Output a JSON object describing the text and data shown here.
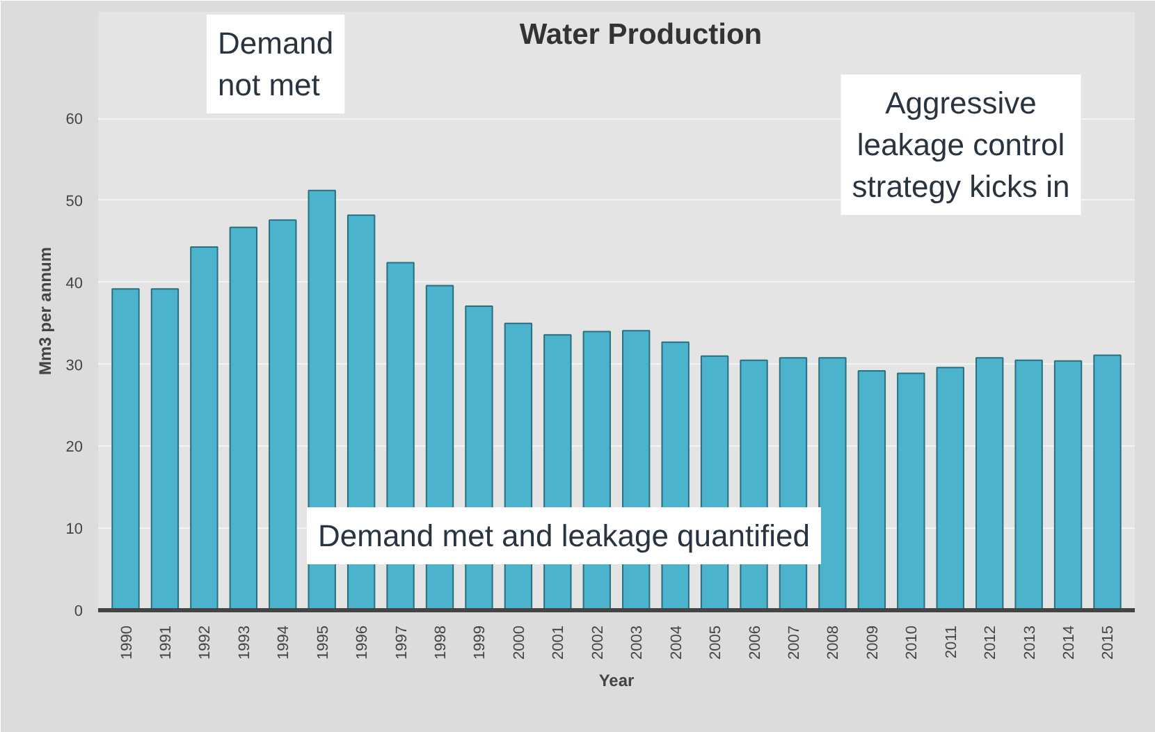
{
  "chart_data": {
    "type": "bar",
    "title": "Water Production",
    "xlabel": "Year",
    "ylabel": "Mm3 per annum",
    "categories": [
      "1990",
      "1991",
      "1992",
      "1993",
      "1994",
      "1995",
      "1996",
      "1997",
      "1998",
      "1999",
      "2000",
      "2001",
      "2002",
      "2003",
      "2004",
      "2005",
      "2006",
      "2007",
      "2008",
      "2009",
      "2010",
      "2011",
      "2012",
      "2013",
      "2014",
      "2015"
    ],
    "values": [
      39.2,
      39.2,
      44.3,
      46.7,
      47.6,
      51.2,
      48.2,
      42.4,
      39.6,
      37.1,
      35.0,
      33.6,
      34.0,
      34.1,
      32.7,
      31.0,
      30.5,
      30.8,
      30.8,
      29.2,
      28.9,
      29.6,
      30.8,
      30.5,
      30.4,
      31.1
    ],
    "color": "#4bb3cc",
    "ylim": [
      0,
      73
    ],
    "yticks": [
      0,
      10,
      20,
      30,
      40,
      50,
      60
    ],
    "grid": "y",
    "annotations": [
      "Demand\nnot met",
      "Aggressive\nleakage control\nstrategy kicks in",
      "Demand met and leakage quantified"
    ]
  }
}
